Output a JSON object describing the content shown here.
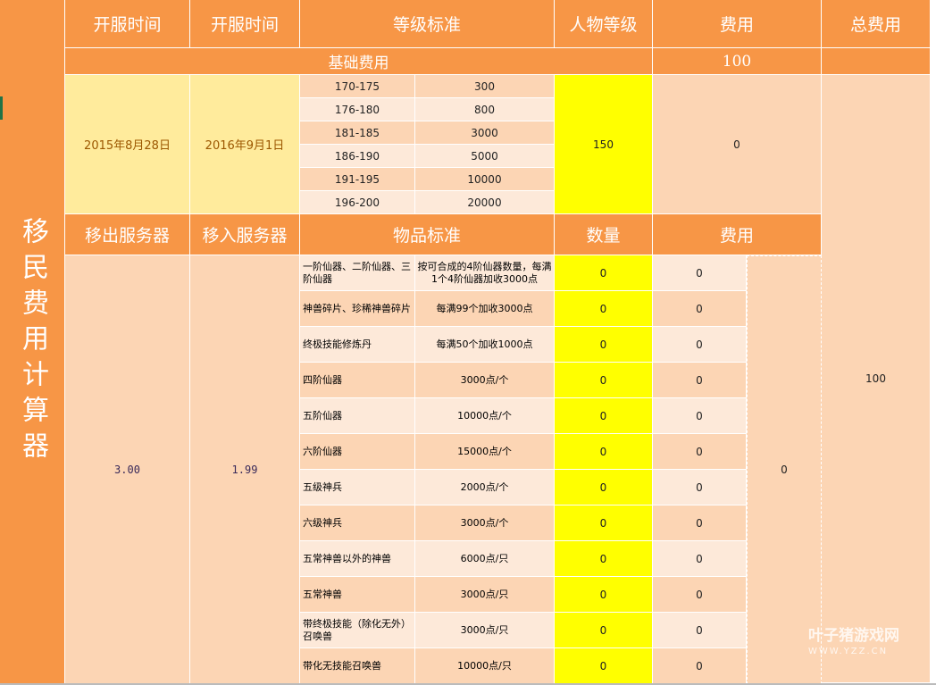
{
  "title": "移民费用计算器",
  "header": {
    "open1": "开服时间",
    "open2": "开服时间",
    "level_std": "等级标准",
    "char_level": "人物等级",
    "fee": "费用",
    "total": "总费用"
  },
  "base": {
    "label": "基础费用",
    "value": "100"
  },
  "dates": {
    "from": "2015年8月28日",
    "to": "2016年9月1日"
  },
  "levels": [
    [
      "170-175",
      "300"
    ],
    [
      "176-180",
      "800"
    ],
    [
      "181-185",
      "3000"
    ],
    [
      "186-190",
      "5000"
    ],
    [
      "191-195",
      "10000"
    ],
    [
      "196-200",
      "20000"
    ]
  ],
  "char_level": "150",
  "level_fee": "0",
  "total_fee": "100",
  "header2": {
    "out": "移出服务器",
    "in": "移入服务器",
    "item_std": "物品标准",
    "qty": "数量",
    "fee": "费用"
  },
  "servers": {
    "out": "3.00",
    "in": "1.99"
  },
  "items": [
    [
      "一阶仙器、二阶仙器、三阶仙器",
      "按可合成的4阶仙器数量，每满1个4阶仙器加收3000点",
      "0",
      "0"
    ],
    [
      "神兽碎片、珍稀神兽碎片",
      "每满99个加收3000点",
      "0",
      "0"
    ],
    [
      "终极技能修炼丹",
      "每满50个加收1000点",
      "0",
      "0"
    ],
    [
      "四阶仙器",
      "3000点/个",
      "0",
      "0"
    ],
    [
      "五阶仙器",
      "10000点/个",
      "0",
      "0"
    ],
    [
      "六阶仙器",
      "15000点/个",
      "0",
      "0"
    ],
    [
      "五级神兵",
      "2000点/个",
      "0",
      "0"
    ],
    [
      "六级神兵",
      "3000点/个",
      "0",
      "0"
    ],
    [
      "五常神兽以外的神兽",
      "6000点/只",
      "0",
      "0"
    ],
    [
      "五常神兽",
      "3000点/只",
      "0",
      "0"
    ],
    [
      "带终极技能（除化无外）召唤兽",
      "3000点/只",
      "0",
      "0"
    ],
    [
      "带化无技能召唤兽",
      "10000点/只",
      "0",
      "0"
    ]
  ],
  "items_fee_total": "0",
  "watermark": {
    "name": "叶子猪游戏网",
    "url": "WWW.YZZ.CN"
  }
}
